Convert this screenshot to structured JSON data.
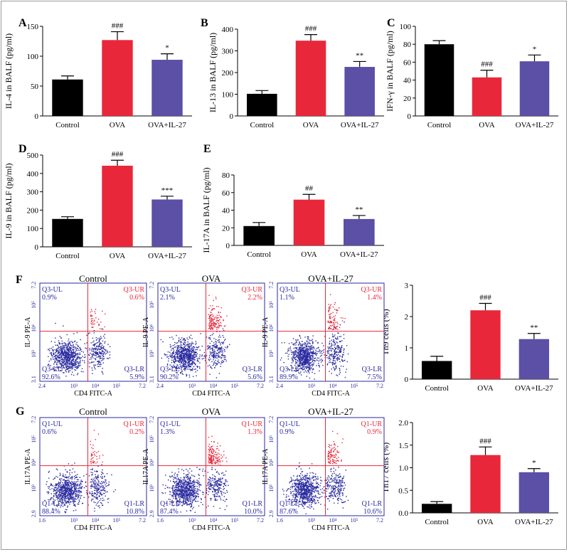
{
  "colors": {
    "control": "#000000",
    "ova": "#e8283a",
    "ova_il27": "#5b4fa6",
    "flow_border": "#2a2aa0",
    "dot_blue": "#2a2aa0",
    "dot_red": "#e8283a",
    "gate": "#e8283a"
  },
  "chart_data": [
    {
      "panel": "A",
      "type": "bar",
      "categories": [
        "Control",
        "OVA",
        "OVA+IL-27"
      ],
      "values": [
        61,
        127,
        94
      ],
      "errors": [
        6,
        14,
        10
      ],
      "annotations": [
        "",
        "###",
        "*"
      ],
      "ylabel": "IL-4 in BALF (pg/ml)",
      "ylim": [
        0,
        150
      ],
      "yticks": [
        0,
        50,
        100,
        150
      ]
    },
    {
      "panel": "B",
      "type": "bar",
      "categories": [
        "Control",
        "OVA",
        "OVA+IL-27"
      ],
      "values": [
        102,
        347,
        226
      ],
      "errors": [
        15,
        28,
        25
      ],
      "annotations": [
        "",
        "###",
        "**"
      ],
      "ylabel": "IL-13 in BALF (pg/ml)",
      "ylim": [
        0,
        400
      ],
      "yticks": [
        0,
        100,
        200,
        300,
        400
      ]
    },
    {
      "panel": "C",
      "type": "bar",
      "categories": [
        "Control",
        "OVA",
        "OVA+IL-27"
      ],
      "values": [
        80,
        43,
        61
      ],
      "errors": [
        4,
        8,
        7
      ],
      "annotations": [
        "",
        "###",
        "*"
      ],
      "ylabel": "IFN-γ in BALF (pg/ml)",
      "ylim": [
        0,
        100
      ],
      "yticks": [
        0,
        20,
        40,
        60,
        80,
        100
      ]
    },
    {
      "panel": "D",
      "type": "bar",
      "categories": [
        "Control",
        "OVA",
        "OVA+IL-27"
      ],
      "values": [
        152,
        442,
        258
      ],
      "errors": [
        12,
        30,
        18
      ],
      "annotations": [
        "",
        "###",
        "***"
      ],
      "ylabel": "IL-9 in BALF (pg/ml)",
      "ylim": [
        0,
        500
      ],
      "yticks": [
        0,
        100,
        200,
        300,
        400,
        500
      ]
    },
    {
      "panel": "E",
      "type": "bar",
      "categories": [
        "Control",
        "OVA",
        "OVA+IL-27"
      ],
      "values": [
        22,
        52,
        30
      ],
      "errors": [
        4,
        6,
        4
      ],
      "annotations": [
        "",
        "##",
        "**"
      ],
      "ylabel": "IL-17A in BALF (pg/ml)",
      "ylim": [
        0,
        80
      ],
      "yticks": [
        0,
        20,
        40,
        60,
        80
      ]
    },
    {
      "panel": "F",
      "type": "bar",
      "categories": [
        "Control",
        "OVA",
        "OVA+IL-27"
      ],
      "values": [
        0.58,
        2.2,
        1.28
      ],
      "errors": [
        0.15,
        0.22,
        0.18
      ],
      "annotations": [
        "",
        "###",
        "**"
      ],
      "ylabel": "Th9 cells (%)",
      "ylim": [
        0,
        3
      ],
      "yticks": [
        0,
        1,
        2,
        3
      ]
    },
    {
      "panel": "G",
      "type": "bar",
      "categories": [
        "Control",
        "OVA",
        "OVA+IL-27"
      ],
      "values": [
        0.2,
        1.28,
        0.9
      ],
      "errors": [
        0.05,
        0.18,
        0.08
      ],
      "annotations": [
        "",
        "###",
        "*"
      ],
      "ylabel": "Th17 cells (%)",
      "ylim": [
        0,
        2
      ],
      "yticks": [
        "0.0",
        "0.5",
        "1.0",
        "1.5",
        "2.0"
      ]
    },
    {
      "panel": "F",
      "type": "scatter",
      "subtype": "flow-cytometry",
      "xlabel": "CD4 FITC-A",
      "ylabel": "IL-9 PE-A",
      "x_ticks": [
        "2.4",
        "10³",
        "10⁴",
        "10⁵",
        "7.2"
      ],
      "y_ticks": [
        "3.1",
        "10³",
        "10⁴",
        "10⁵",
        "7.2"
      ],
      "plots": [
        {
          "title": "Control",
          "quadrants": {
            "UL": [
              "Q3-UL",
              "0.9%"
            ],
            "UR": [
              "Q3-UR",
              "0.6%"
            ],
            "LL": [
              "Q3-LL",
              "92.6%"
            ],
            "LR": [
              "Q3-LR",
              "5.9%"
            ]
          }
        },
        {
          "title": "OVA",
          "quadrants": {
            "UL": [
              "Q3-UL",
              "2.1%"
            ],
            "UR": [
              "Q3-UR",
              "2.2%"
            ],
            "LL": [
              "Q3-LL",
              "90.2%"
            ],
            "LR": [
              "Q3-LR",
              "5.6%"
            ]
          }
        },
        {
          "title": "OVA+IL-27",
          "quadrants": {
            "UL": [
              "Q3-UL",
              "1.1%"
            ],
            "UR": [
              "Q3-UR",
              "1.4%"
            ],
            "LL": [
              "Q3-LL",
              "89.9%"
            ],
            "LR": [
              "Q3-LR",
              "7.5%"
            ]
          }
        }
      ]
    },
    {
      "panel": "G",
      "type": "scatter",
      "subtype": "flow-cytometry",
      "xlabel": "CD4 FITC-A",
      "ylabel": "IL17A PE-A",
      "x_ticks": [
        "1.6",
        "10³",
        "10⁴",
        "10⁵",
        "7.2"
      ],
      "y_ticks": [
        "2.9",
        "10³",
        "10⁴",
        "10⁵",
        "7.2"
      ],
      "plots": [
        {
          "title": "Control",
          "quadrants": {
            "UL": [
              "Q1-UL",
              "0.6%"
            ],
            "UR": [
              "Q1-UR",
              "0.2%"
            ],
            "LL": [
              "Q1-LL",
              "88.4%"
            ],
            "LR": [
              "Q1-LR",
              "10.8%"
            ]
          }
        },
        {
          "title": "OVA",
          "quadrants": {
            "UL": [
              "Q1-UL",
              "1.3%"
            ],
            "UR": [
              "Q1-UR",
              "1.3%"
            ],
            "LL": [
              "Q1-LL",
              "87.4%"
            ],
            "LR": [
              "Q1-LR",
              "10.0%"
            ]
          }
        },
        {
          "title": "OVA+IL-27",
          "quadrants": {
            "UL": [
              "Q1-UL",
              "0.9%"
            ],
            "UR": [
              "Q1-UR",
              "0.9%"
            ],
            "LL": [
              "Q1-LL",
              "87.6%"
            ],
            "LR": [
              "Q1-LR",
              "10.6%"
            ]
          }
        }
      ]
    }
  ]
}
